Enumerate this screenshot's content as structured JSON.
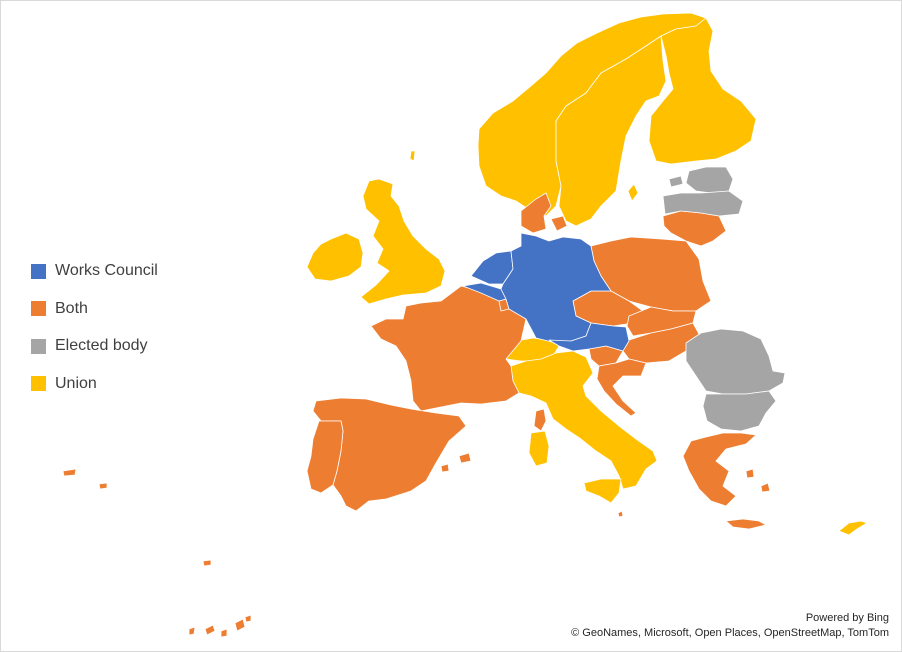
{
  "legend": {
    "items": [
      {
        "label": "Works Council",
        "color": "#4472c4"
      },
      {
        "label": "Both",
        "color": "#ed7d31"
      },
      {
        "label": "Elected body",
        "color": "#a5a5a5"
      },
      {
        "label": "Union",
        "color": "#ffc000"
      }
    ]
  },
  "regions": {
    "works_council": [
      "Netherlands",
      "Belgium",
      "Germany",
      "Austria"
    ],
    "both": [
      "France",
      "Spain",
      "Portugal",
      "Denmark",
      "Lithuania",
      "Poland",
      "Czechia",
      "Slovakia",
      "Hungary",
      "Slovenia",
      "Croatia",
      "Greece",
      "Luxembourg",
      "Malta",
      "Canary Islands",
      "Balearic Islands",
      "Azores"
    ],
    "elected_body": [
      "Latvia",
      "Estonia",
      "Romania",
      "Bulgaria"
    ],
    "union": [
      "Norway",
      "Sweden",
      "Finland",
      "United Kingdom",
      "Ireland",
      "Switzerland",
      "Italy",
      "Cyprus"
    ]
  },
  "attribution": {
    "powered_by": "Powered by Bing",
    "copyright": "© GeoNames, Microsoft, Open Places, OpenStreetMap, TomTom"
  }
}
